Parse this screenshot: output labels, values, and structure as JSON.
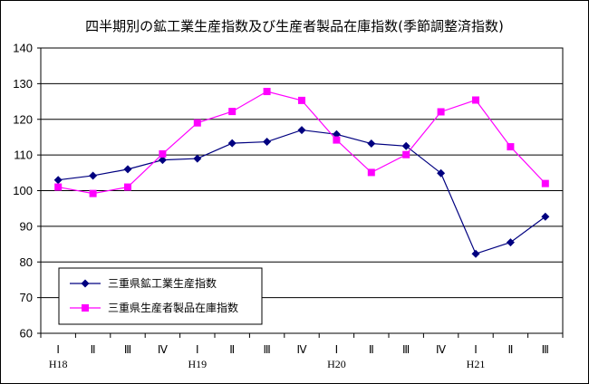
{
  "chart_data": {
    "type": "line",
    "title": "四半期別の鉱工業生産指数及び生産者製品在庫指数(季節調整済指数)",
    "categories": [
      "Ⅰ",
      "Ⅱ",
      "Ⅲ",
      "Ⅳ",
      "Ⅰ",
      "Ⅱ",
      "Ⅲ",
      "Ⅳ",
      "Ⅰ",
      "Ⅱ",
      "Ⅲ",
      "Ⅳ",
      "Ⅰ",
      "Ⅱ",
      "Ⅲ"
    ],
    "year_labels": [
      {
        "index": 0,
        "label": "H18"
      },
      {
        "index": 4,
        "label": "H19"
      },
      {
        "index": 8,
        "label": "H20"
      },
      {
        "index": 12,
        "label": "H21"
      }
    ],
    "ylim": [
      60,
      140
    ],
    "yticks": [
      60,
      70,
      80,
      90,
      100,
      110,
      120,
      130,
      140
    ],
    "grid": true,
    "legend_position": "bottom-left",
    "series": [
      {
        "name": "三重県鉱工業生産指数",
        "color": "#000080",
        "marker": "diamond",
        "values": [
          103.0,
          104.2,
          106.0,
          108.6,
          109.0,
          113.3,
          113.7,
          117.0,
          115.8,
          113.2,
          112.5,
          104.9,
          82.3,
          85.5,
          92.7
        ]
      },
      {
        "name": "三重県生産者製品在庫指数",
        "color": "#ff00ff",
        "marker": "square",
        "values": [
          101.0,
          99.2,
          101.0,
          110.3,
          119.0,
          122.2,
          127.8,
          125.3,
          114.2,
          105.1,
          110.1,
          122.1,
          125.4,
          112.3,
          102.0
        ]
      }
    ]
  }
}
